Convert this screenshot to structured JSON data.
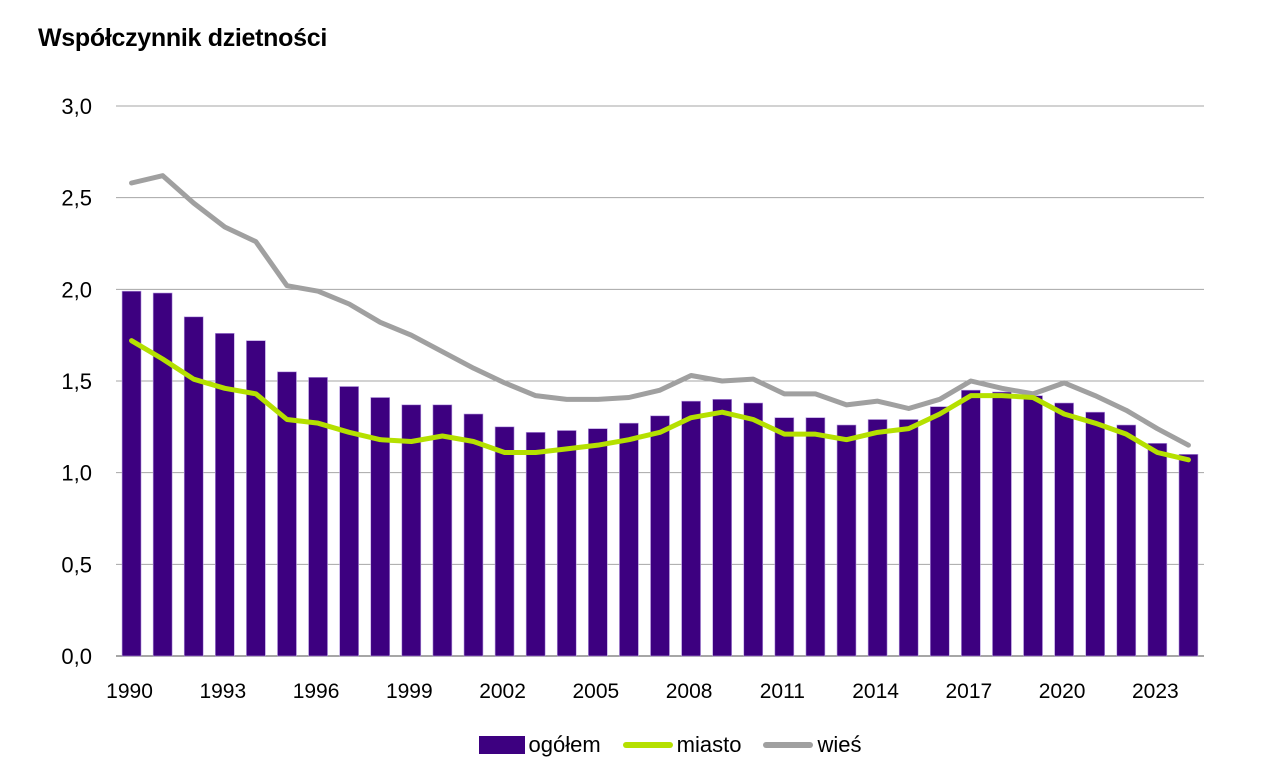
{
  "chart_data": {
    "type": "bar",
    "title": "Współczynnik dzietności",
    "xlabel": "",
    "ylabel": "",
    "ylim": [
      0,
      3
    ],
    "yticks": [
      "0,0",
      "0,5",
      "1,0",
      "1,5",
      "2,0",
      "2,5",
      "3,0"
    ],
    "ytick_values": [
      0,
      0.5,
      1.0,
      1.5,
      2.0,
      2.5,
      3.0
    ],
    "grid": true,
    "legend_position": "bottom",
    "x": [
      1990,
      1991,
      1992,
      1993,
      1994,
      1995,
      1996,
      1997,
      1998,
      1999,
      2000,
      2001,
      2002,
      2003,
      2004,
      2005,
      2006,
      2007,
      2008,
      2009,
      2010,
      2011,
      2012,
      2013,
      2014,
      2015,
      2016,
      2017,
      2018,
      2019,
      2020,
      2021,
      2022,
      2023,
      2024
    ],
    "xtick_labels": [
      "1990",
      "1993",
      "1996",
      "1999",
      "2002",
      "2005",
      "2008",
      "2011",
      "2014",
      "2017",
      "2020",
      "2023"
    ],
    "series": [
      {
        "name": "ogółem",
        "kind": "bar",
        "color": "#3d0080",
        "values": [
          1.99,
          1.98,
          1.85,
          1.76,
          1.72,
          1.55,
          1.52,
          1.47,
          1.41,
          1.37,
          1.37,
          1.32,
          1.25,
          1.22,
          1.23,
          1.24,
          1.27,
          1.31,
          1.39,
          1.4,
          1.38,
          1.3,
          1.3,
          1.26,
          1.29,
          1.29,
          1.36,
          1.45,
          1.44,
          1.42,
          1.38,
          1.33,
          1.26,
          1.16,
          1.1
        ]
      },
      {
        "name": "miasto",
        "kind": "line",
        "color": "#b5e000",
        "values": [
          1.72,
          1.62,
          1.51,
          1.46,
          1.43,
          1.29,
          1.27,
          1.22,
          1.18,
          1.17,
          1.2,
          1.17,
          1.11,
          1.11,
          1.13,
          1.15,
          1.18,
          1.22,
          1.3,
          1.33,
          1.29,
          1.21,
          1.21,
          1.18,
          1.22,
          1.24,
          1.32,
          1.42,
          1.42,
          1.41,
          1.32,
          1.27,
          1.21,
          1.11,
          1.07
        ]
      },
      {
        "name": "wieś",
        "kind": "line",
        "color": "#a0a0a0",
        "values": [
          2.58,
          2.62,
          2.47,
          2.34,
          2.26,
          2.02,
          1.99,
          1.92,
          1.82,
          1.75,
          1.66,
          1.57,
          1.49,
          1.42,
          1.4,
          1.4,
          1.41,
          1.45,
          1.53,
          1.5,
          1.51,
          1.43,
          1.43,
          1.37,
          1.39,
          1.35,
          1.4,
          1.5,
          1.46,
          1.43,
          1.49,
          1.42,
          1.34,
          1.24,
          1.15
        ]
      }
    ]
  },
  "legend": {
    "items": [
      {
        "label": "ogółem",
        "color": "#3d0080"
      },
      {
        "label": "miasto",
        "color": "#b5e000"
      },
      {
        "label": "wieś",
        "color": "#a0a0a0"
      }
    ]
  }
}
